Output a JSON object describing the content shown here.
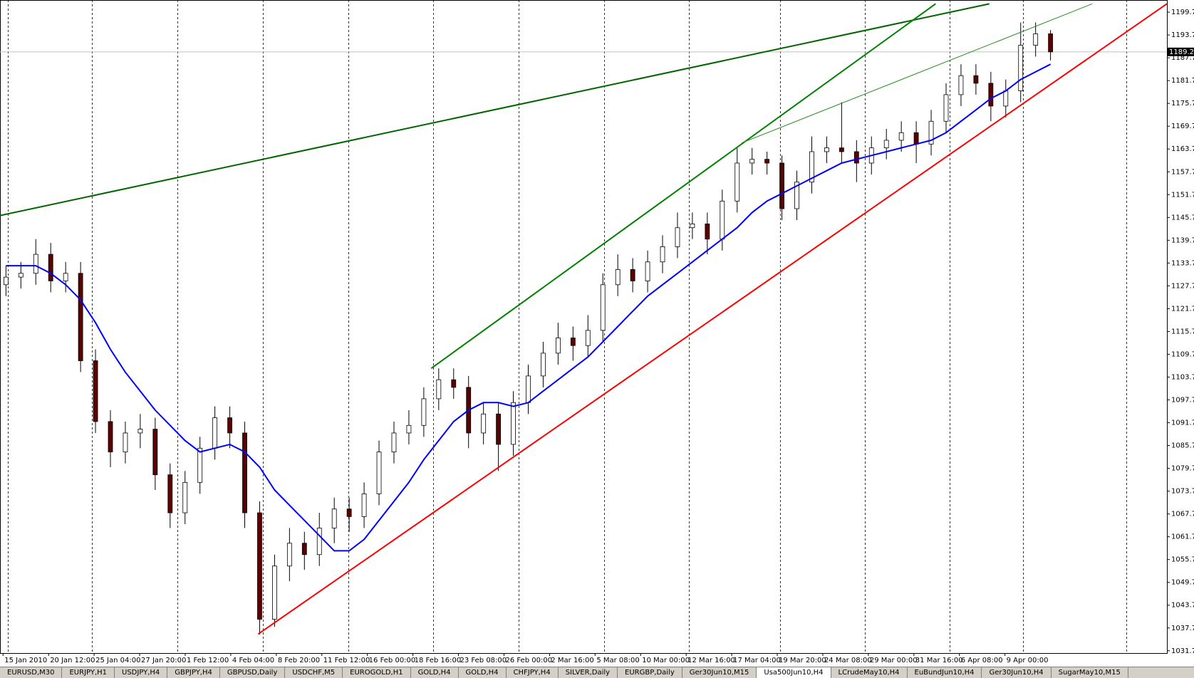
{
  "chart_data": {
    "type": "candlestick",
    "xlim": [
      -0.4,
      77.8
    ],
    "ylim": [
      1031.1,
      1202.9
    ],
    "yticks": [
      {
        "value": 1031.7,
        "label": "1031.70"
      },
      {
        "value": 1037.7,
        "label": "1037.70"
      },
      {
        "value": 1043.7,
        "label": "1043.70"
      },
      {
        "value": 1049.7,
        "label": "1049.70"
      },
      {
        "value": 1055.7,
        "label": "1055.70"
      },
      {
        "value": 1061.7,
        "label": "1061.70"
      },
      {
        "value": 1067.7,
        "label": "1067.70"
      },
      {
        "value": 1073.7,
        "label": "1073.70"
      },
      {
        "value": 1079.7,
        "label": "1079.70"
      },
      {
        "value": 1085.7,
        "label": "1085.70"
      },
      {
        "value": 1091.7,
        "label": "1091.70"
      },
      {
        "value": 1097.7,
        "label": "1097.70"
      },
      {
        "value": 1103.7,
        "label": "1103.70"
      },
      {
        "value": 1109.7,
        "label": "1109.70"
      },
      {
        "value": 1115.7,
        "label": "1115.70"
      },
      {
        "value": 1121.7,
        "label": "1121.70"
      },
      {
        "value": 1127.7,
        "label": "1127.70"
      },
      {
        "value": 1133.7,
        "label": "1133.70"
      },
      {
        "value": 1139.7,
        "label": "1139.70"
      },
      {
        "value": 1145.7,
        "label": "1145.70"
      },
      {
        "value": 1151.7,
        "label": "1151.70"
      },
      {
        "value": 1157.7,
        "label": "1157.70"
      },
      {
        "value": 1163.7,
        "label": "1163.70"
      },
      {
        "value": 1169.7,
        "label": "1169.70"
      },
      {
        "value": 1175.7,
        "label": "1175.70"
      },
      {
        "value": 1181.7,
        "label": "1181.70"
      },
      {
        "value": 1187.7,
        "label": "1187.70"
      },
      {
        "value": 1193.7,
        "label": "1193.70"
      },
      {
        "value": 1199.7,
        "label": "1199.70"
      }
    ],
    "time_labels": [
      "15 Jan 2010",
      "20 Jan 12:00",
      "25 Jan 04:00",
      "27 Jan 20:00",
      "1 Feb 12:00",
      "4 Feb 04:00",
      "8 Feb 20:00",
      "11 Feb 12:00",
      "16 Feb 00:00",
      "18 Feb 16:00",
      "23 Feb 08:00",
      "26 Feb 00:00",
      "2 Mar 16:00",
      "5 Mar 08:00",
      "10 Mar 00:00",
      "12 Mar 16:00",
      "17 Mar 04:00",
      "19 Mar 20:00",
      "24 Mar 08:00",
      "29 Mar 00:00",
      "31 Mar 16:00",
      "6 Apr 08:00",
      "9 Apr 00:00"
    ],
    "bull_color": "#ffffff",
    "bear_color": "#5a0000",
    "open": [
      1128,
      1130,
      1131,
      1136,
      1129,
      1131,
      1108,
      1092,
      1084,
      1089,
      1090,
      1078,
      1068,
      1076,
      1085,
      1093,
      1089,
      1068,
      1040,
      1054,
      1060,
      1057,
      1064,
      1069,
      1067,
      1073,
      1084,
      1089,
      1091,
      1098,
      1103,
      1101,
      1089,
      1094,
      1086,
      1097,
      1104,
      1110,
      1114,
      1112,
      1116,
      1128,
      1132,
      1129,
      1134,
      1138,
      1143,
      1144,
      1140,
      1150,
      1160,
      1161,
      1160,
      1148,
      1155,
      1163,
      1164,
      1163,
      1160,
      1164,
      1166,
      1168,
      1165,
      1171,
      1178,
      1183,
      1181,
      1175,
      1179,
      1191,
      1194
    ],
    "high": [
      1133,
      1134,
      1140,
      1139,
      1134,
      1134,
      1111,
      1095,
      1092,
      1094,
      1093,
      1081,
      1079,
      1088,
      1096,
      1096,
      1092,
      1071,
      1057,
      1064,
      1063,
      1068,
      1072,
      1072,
      1076,
      1087,
      1092,
      1095,
      1101,
      1106,
      1106,
      1104,
      1097,
      1097,
      1100,
      1107,
      1113,
      1118,
      1117,
      1120,
      1131,
      1136,
      1135,
      1137,
      1141,
      1147,
      1147,
      1147,
      1153,
      1164,
      1164,
      1163,
      1162,
      1158,
      1167,
      1167,
      1176,
      1166,
      1167,
      1169,
      1171,
      1171,
      1174,
      1181,
      1186,
      1186,
      1184,
      1182,
      1197,
      1197,
      1195
    ],
    "low": [
      1125,
      1127,
      1128,
      1126,
      1126,
      1105,
      1089,
      1080,
      1081,
      1085,
      1074,
      1064,
      1065,
      1073,
      1082,
      1085,
      1064,
      1036,
      1038,
      1050,
      1053,
      1054,
      1060,
      1063,
      1064,
      1070,
      1081,
      1086,
      1088,
      1095,
      1098,
      1085,
      1086,
      1079,
      1083,
      1094,
      1101,
      1107,
      1108,
      1109,
      1113,
      1125,
      1126,
      1126,
      1131,
      1135,
      1140,
      1136,
      1137,
      1147,
      1157,
      1157,
      1145,
      1145,
      1152,
      1160,
      1160,
      1155,
      1157,
      1161,
      1163,
      1160,
      1162,
      1168,
      1175,
      1178,
      1171,
      1172,
      1176,
      1188,
      1187
    ],
    "close": [
      1130,
      1131,
      1136,
      1129,
      1131,
      1108,
      1092,
      1084,
      1089,
      1090,
      1078,
      1068,
      1076,
      1085,
      1093,
      1089,
      1068,
      1040,
      1054,
      1060,
      1057,
      1064,
      1069,
      1067,
      1073,
      1084,
      1089,
      1091,
      1098,
      1103,
      1101,
      1089,
      1094,
      1086,
      1097,
      1104,
      1110,
      1114,
      1112,
      1116,
      1128,
      1132,
      1129,
      1134,
      1138,
      1143,
      1144,
      1140,
      1150,
      1160,
      1161,
      1160,
      1148,
      1155,
      1163,
      1164,
      1163,
      1160,
      1164,
      1166,
      1168,
      1165,
      1171,
      1178,
      1183,
      1181,
      1175,
      1179,
      1191,
      1194,
      1189.25
    ],
    "ma": {
      "color": "#0000ff",
      "values": [
        1133,
        1133,
        1133,
        1131,
        1128,
        1124,
        1118,
        1111,
        1105,
        1100,
        1095,
        1091,
        1087,
        1084,
        1085,
        1086,
        1084,
        1080,
        1074,
        1070,
        1066,
        1062,
        1058,
        1058,
        1061,
        1066,
        1071,
        1076,
        1082,
        1087,
        1092,
        1095,
        1097,
        1097,
        1096,
        1097,
        1100,
        1103,
        1106,
        1109,
        1113,
        1117,
        1121,
        1125,
        1128,
        1131,
        1134,
        1137,
        1140,
        1143,
        1147,
        1150,
        1152,
        1154,
        1156,
        1158,
        1160,
        1161,
        1162,
        1163,
        1164,
        1165,
        1166,
        1168,
        1171,
        1174,
        1177,
        1179,
        1182,
        1184,
        1186
      ]
    },
    "trend_lines": [
      {
        "color": "#006400",
        "from": [
          -0.4,
          1146.2
        ],
        "to": [
          65.9,
          1201.9
        ]
      },
      {
        "color": "#008000",
        "from": [
          28.5,
          1106
        ],
        "to": [
          62.3,
          1201.9
        ]
      },
      {
        "color": "#228b22",
        "from": [
          49.3,
          1165.3
        ],
        "to": [
          72.8,
          1201.9
        ]
      },
      {
        "color": "#ff0000",
        "from": [
          16.9,
          1036.1
        ],
        "to": [
          77.8,
          1201.9
        ]
      }
    ],
    "price_label": {
      "value": 1189.25,
      "label": "1189.25"
    }
  },
  "tabs": {
    "items": [
      "EURUSD,M30",
      "EURJPY,H1",
      "USDJPY,H4",
      "GBPJPY,H4",
      "GBPUSD,Daily",
      "USDCHF,M5",
      "EUROGOLD,H1",
      "GOLD,H4",
      "GOLD,H4",
      "CHFJPY,H4",
      "SILVER,Daily",
      "EURGBP,Daily",
      "Ger30Jun10,M15",
      "Usa500Jun10,H4",
      "LCrudeMay10,H4",
      "EuBundJun10,H4",
      "Ger30Jun10,H4",
      "SugarMay10,M15"
    ],
    "active": 13
  }
}
